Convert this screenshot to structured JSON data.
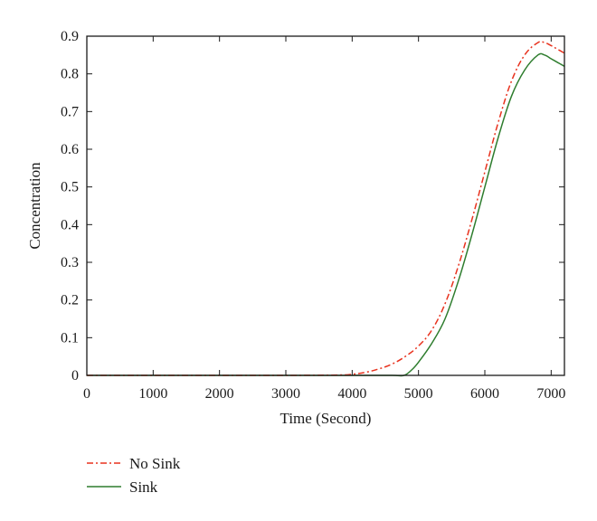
{
  "chart_data": {
    "type": "line",
    "title": "",
    "xlabel": "Time (Second)",
    "ylabel": "Concentration",
    "xlim": [
      0,
      7200
    ],
    "ylim": [
      0,
      0.9
    ],
    "xticks": [
      0,
      1000,
      2000,
      3000,
      4000,
      5000,
      6000,
      7000
    ],
    "yticks": [
      0,
      0.1,
      0.2,
      0.3,
      0.4,
      0.5,
      0.6,
      0.7,
      0.8,
      0.9
    ],
    "xtick_labels": [
      "0",
      "1000",
      "2000",
      "3000",
      "4000",
      "5000",
      "6000",
      "7000"
    ],
    "ytick_labels": [
      "0",
      "0.1",
      "0.2",
      "0.3",
      "0.4",
      "0.5",
      "0.6",
      "0.7",
      "0.8",
      "0.9"
    ],
    "grid": false,
    "legend_position": "below-left",
    "series": [
      {
        "name": "No Sink",
        "color": "#e8321e",
        "style": "dash-dot",
        "x": [
          0,
          1000,
          2000,
          3000,
          3800,
          4000,
          4200,
          4400,
          4600,
          4800,
          5000,
          5200,
          5400,
          5600,
          5800,
          6000,
          6200,
          6400,
          6600,
          6800,
          6900,
          7000,
          7100,
          7200
        ],
        "y": [
          0,
          0,
          0,
          0,
          0.001,
          0.003,
          0.008,
          0.017,
          0.03,
          0.05,
          0.078,
          0.12,
          0.19,
          0.29,
          0.41,
          0.54,
          0.67,
          0.78,
          0.85,
          0.883,
          0.883,
          0.875,
          0.865,
          0.855
        ]
      },
      {
        "name": "Sink",
        "color": "#2e7d2e",
        "style": "solid",
        "x": [
          0,
          1000,
          2000,
          3000,
          4000,
          4600,
          4780,
          4900,
          5000,
          5200,
          5400,
          5600,
          5800,
          6000,
          6200,
          6400,
          6600,
          6800,
          6900,
          7000,
          7100,
          7200
        ],
        "y": [
          0,
          0,
          0,
          0,
          0,
          0,
          0,
          0.015,
          0.035,
          0.085,
          0.15,
          0.25,
          0.37,
          0.5,
          0.63,
          0.74,
          0.81,
          0.85,
          0.85,
          0.84,
          0.83,
          0.82
        ]
      }
    ]
  }
}
